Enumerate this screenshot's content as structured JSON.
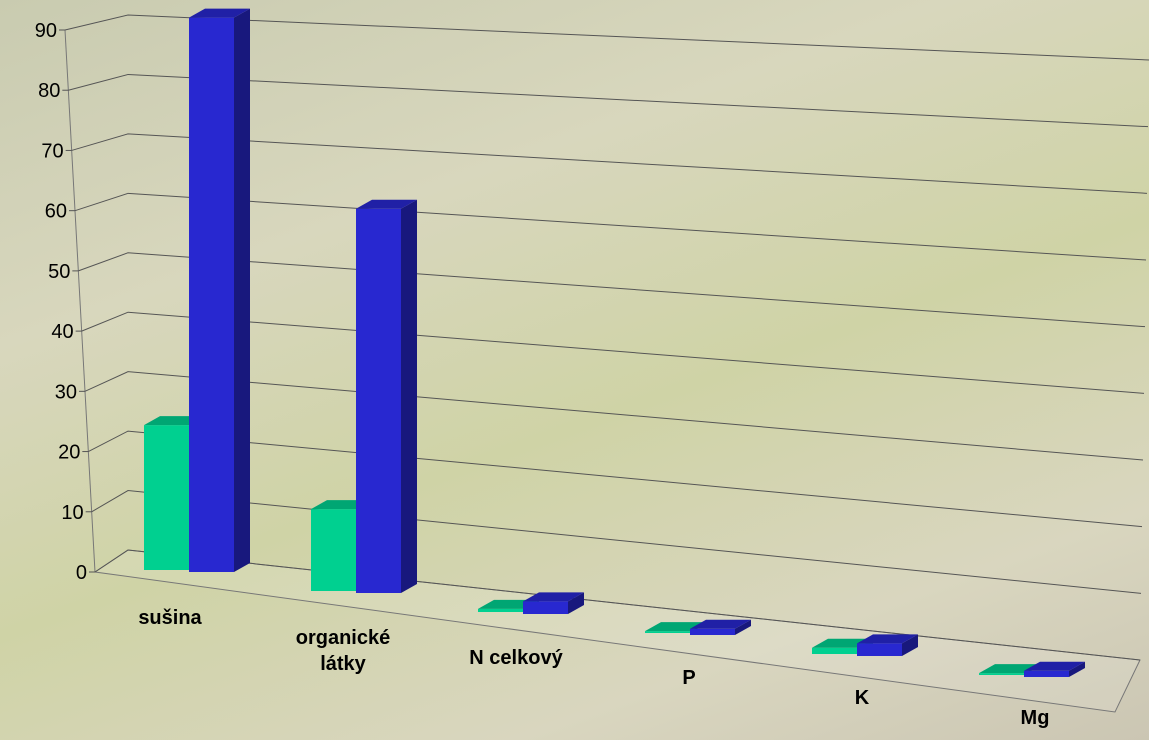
{
  "chart_data": {
    "type": "bar3d",
    "categories": [
      "sušina",
      "organické látky",
      "N celkový",
      "P",
      "K",
      "Mg"
    ],
    "series": [
      {
        "color": "#00d090",
        "values": [
          23,
          13,
          0.5,
          0.3,
          1,
          0.3
        ]
      },
      {
        "color": "#2828d0",
        "values": [
          88,
          61,
          2,
          1,
          2,
          1
        ]
      }
    ],
    "ylim": [
      0,
      90
    ],
    "yticks": [
      0,
      10,
      20,
      30,
      40,
      50,
      60,
      70,
      80,
      90
    ],
    "grid": true
  }
}
